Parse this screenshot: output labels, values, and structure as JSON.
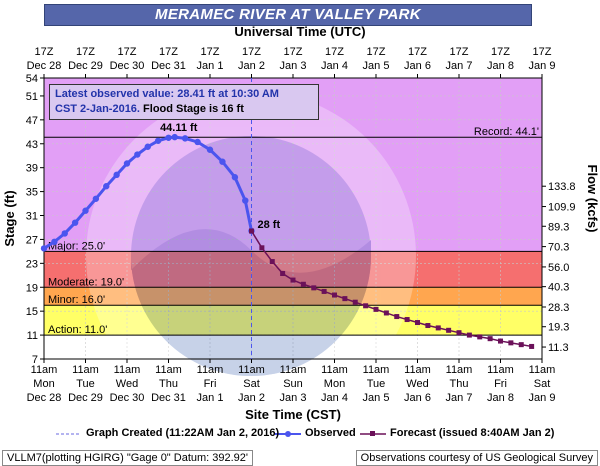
{
  "title": "MERAMEC RIVER AT VALLEY PARK",
  "top_axis_label": "Universal Time (UTC)",
  "bottom_axis_label": "Site Time (CST)",
  "left_axis_label": "Stage (ft)",
  "right_axis_label": "Flow (kcfs)",
  "info_box": {
    "line1": "Latest observed value: 28.41 ft at 10:30 AM",
    "line2a": "CST 2-Jan-2016.",
    "line2b": " Flood Stage is 16 ft"
  },
  "peak_label": "44.11 ft",
  "latest_label": "28 ft",
  "record_label": "Record: 44.1'",
  "flood_categories": [
    {
      "name": "Major: 25.0'",
      "from": 25,
      "to": 54,
      "color": "#e29ff6"
    },
    {
      "name": "Moderate: 19.0'",
      "from": 19,
      "to": 25,
      "color": "#f56f6f"
    },
    {
      "name": "Minor: 16.0'",
      "from": 16,
      "to": 19,
      "color": "#ffa64f"
    },
    {
      "name": "Action: 11.0'",
      "from": 11,
      "to": 16,
      "color": "#ffff66"
    }
  ],
  "utc_ticks": [
    {
      "t": "17Z",
      "d": "Dec 28"
    },
    {
      "t": "17Z",
      "d": "Dec 29"
    },
    {
      "t": "17Z",
      "d": "Dec 30"
    },
    {
      "t": "17Z",
      "d": "Dec 31"
    },
    {
      "t": "17Z",
      "d": "Jan 1"
    },
    {
      "t": "17Z",
      "d": "Jan 2"
    },
    {
      "t": "17Z",
      "d": "Jan 3"
    },
    {
      "t": "17Z",
      "d": "Jan 4"
    },
    {
      "t": "17Z",
      "d": "Jan 5"
    },
    {
      "t": "17Z",
      "d": "Jan 6"
    },
    {
      "t": "17Z",
      "d": "Jan 7"
    },
    {
      "t": "17Z",
      "d": "Jan 8"
    },
    {
      "t": "17Z",
      "d": "Jan 9"
    }
  ],
  "cst_ticks": [
    {
      "t": "11am",
      "w": "Mon",
      "d": "Dec 28"
    },
    {
      "t": "11am",
      "w": "Tue",
      "d": "Dec 29"
    },
    {
      "t": "11am",
      "w": "Wed",
      "d": "Dec 30"
    },
    {
      "t": "11am",
      "w": "Thu",
      "d": "Dec 31"
    },
    {
      "t": "11am",
      "w": "Fri",
      "d": "Jan 1"
    },
    {
      "t": "11am",
      "w": "Sat",
      "d": "Jan 2"
    },
    {
      "t": "11am",
      "w": "Sun",
      "d": "Jan 3"
    },
    {
      "t": "11am",
      "w": "Mon",
      "d": "Jan 4"
    },
    {
      "t": "11am",
      "w": "Tue",
      "d": "Jan 5"
    },
    {
      "t": "11am",
      "w": "Wed",
      "d": "Jan 6"
    },
    {
      "t": "11am",
      "w": "Thu",
      "d": "Jan 7"
    },
    {
      "t": "11am",
      "w": "Fri",
      "d": "Jan 8"
    },
    {
      "t": "11am",
      "w": "Sat",
      "d": "Jan 9"
    }
  ],
  "legend": {
    "created": "Graph Created (11:22AM Jan 2, 2016)",
    "observed": "Observed",
    "forecast": "Forecast (issued 8:40AM Jan 2)"
  },
  "footer": {
    "left": "VLLM7(plotting HGIRG) \"Gage 0\" Datum: 392.92'",
    "right": "Observations courtesy of US Geological Survey"
  },
  "chart_data": {
    "type": "line",
    "title": "MERAMEC RIVER AT VALLEY PARK",
    "xlabel": "Site Time (CST)",
    "ylabel": "Stage (ft)",
    "y2label": "Flow (kcfs)",
    "ylim": [
      7,
      54
    ],
    "y_ticks": [
      7,
      11,
      15,
      19,
      23,
      27,
      31,
      35,
      39,
      43,
      47,
      51,
      54
    ],
    "flow_ticks": [
      {
        "stage": 9.0,
        "label": "11.3"
      },
      {
        "stage": 12.4,
        "label": "19.3"
      },
      {
        "stage": 15.7,
        "label": "28.3"
      },
      {
        "stage": 19.1,
        "label": "40.3"
      },
      {
        "stage": 22.4,
        "label": "56.0"
      },
      {
        "stage": 25.8,
        "label": "70.3"
      },
      {
        "stage": 29.2,
        "label": "89.3"
      },
      {
        "stage": 32.5,
        "label": "109.9"
      },
      {
        "stage": 35.9,
        "label": "133.8"
      }
    ],
    "xlim_days": [
      0,
      12
    ],
    "record_stage": 44.1,
    "graph_created_day": 5.0,
    "series": [
      {
        "name": "Observed",
        "color": "#4b55ee",
        "points": [
          [
            0.0,
            25.5
          ],
          [
            0.25,
            26.6
          ],
          [
            0.5,
            28.0
          ],
          [
            0.75,
            29.8
          ],
          [
            1.0,
            31.8
          ],
          [
            1.25,
            33.8
          ],
          [
            1.5,
            35.9
          ],
          [
            1.75,
            37.8
          ],
          [
            2.0,
            39.7
          ],
          [
            2.25,
            41.2
          ],
          [
            2.5,
            42.5
          ],
          [
            2.75,
            43.5
          ],
          [
            3.0,
            44.0
          ],
          [
            3.15,
            44.11
          ],
          [
            3.4,
            43.9
          ],
          [
            3.7,
            43.3
          ],
          [
            4.0,
            42.0
          ],
          [
            4.3,
            40.0
          ],
          [
            4.6,
            37.4
          ],
          [
            4.85,
            33.5
          ],
          [
            5.0,
            28.41
          ]
        ]
      },
      {
        "name": "Forecast",
        "color": "#6b1159",
        "points": [
          [
            5.0,
            28.41
          ],
          [
            5.25,
            25.6
          ],
          [
            5.5,
            23.3
          ],
          [
            5.75,
            21.3
          ],
          [
            6.0,
            20.2
          ],
          [
            6.25,
            19.5
          ],
          [
            6.5,
            18.9
          ],
          [
            6.75,
            18.3
          ],
          [
            7.0,
            17.7
          ],
          [
            7.25,
            17.1
          ],
          [
            7.5,
            16.5
          ],
          [
            7.75,
            15.9
          ],
          [
            8.0,
            15.3
          ],
          [
            8.25,
            14.7
          ],
          [
            8.5,
            14.1
          ],
          [
            8.75,
            13.6
          ],
          [
            9.0,
            13.1
          ],
          [
            9.25,
            12.6
          ],
          [
            9.5,
            12.2
          ],
          [
            9.75,
            11.8
          ],
          [
            10.0,
            11.4
          ],
          [
            10.25,
            11.0
          ],
          [
            10.5,
            10.7
          ],
          [
            10.75,
            10.4
          ],
          [
            11.0,
            10.0
          ],
          [
            11.25,
            9.7
          ],
          [
            11.5,
            9.4
          ],
          [
            11.75,
            9.1
          ]
        ]
      }
    ]
  }
}
